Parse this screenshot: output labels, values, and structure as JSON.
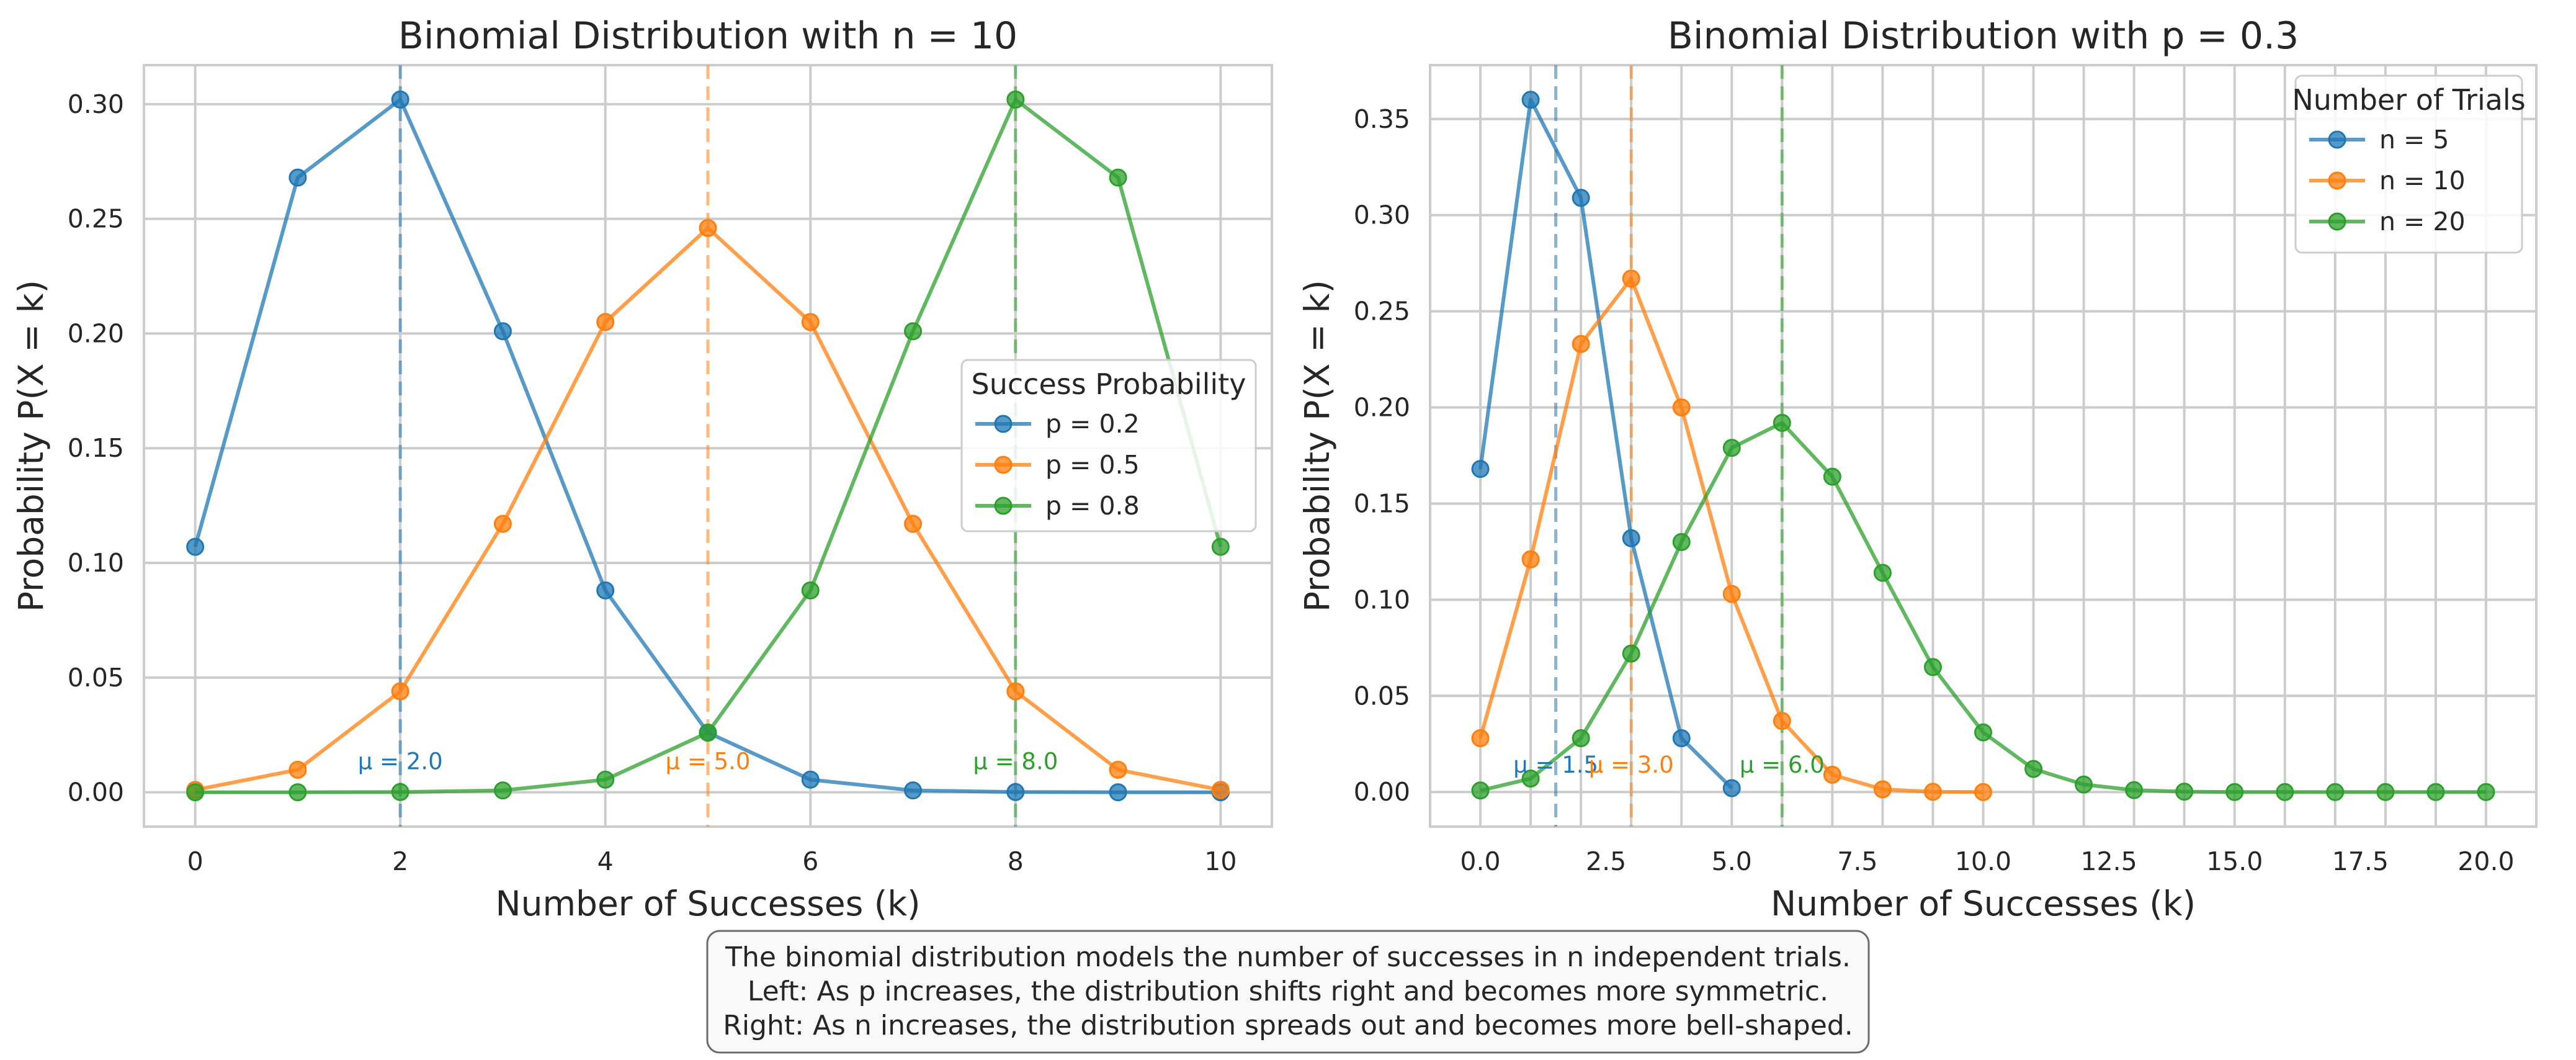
{
  "chart_data": [
    {
      "type": "line",
      "title": "Binomial Distribution with n = 10",
      "xlabel": "Number of Successes (k)",
      "ylabel": "Probability P(X = k)",
      "xlim": [
        -0.5,
        10.5
      ],
      "ylim": [
        -0.015,
        0.317
      ],
      "xticks": [
        0,
        2,
        4,
        6,
        8,
        10
      ],
      "xtick_labels": [
        "0",
        "2",
        "4",
        "6",
        "8",
        "10"
      ],
      "yticks": [
        0,
        0.05,
        0.1,
        0.15,
        0.2,
        0.25,
        0.3
      ],
      "ytick_labels": [
        "0.00",
        "0.05",
        "0.10",
        "0.15",
        "0.20",
        "0.25",
        "0.30"
      ],
      "grid": true,
      "legend": {
        "title": "Success Probability",
        "placement": "center-right"
      },
      "series": [
        {
          "name": "p = 0.2",
          "color": "#1f77b4",
          "x": [
            0,
            1,
            2,
            3,
            4,
            5,
            6,
            7,
            8,
            9,
            10
          ],
          "values": [
            0.107,
            0.268,
            0.302,
            0.201,
            0.088,
            0.026,
            0.0055,
            0.0008,
            0.0001,
            0.0,
            0.0
          ],
          "mean": 2.0,
          "mean_label": "μ = 2.0"
        },
        {
          "name": "p = 0.5",
          "color": "#ff7f0e",
          "x": [
            0,
            1,
            2,
            3,
            4,
            5,
            6,
            7,
            8,
            9,
            10
          ],
          "values": [
            0.001,
            0.0098,
            0.044,
            0.117,
            0.205,
            0.246,
            0.205,
            0.117,
            0.044,
            0.0098,
            0.001
          ],
          "mean": 5.0,
          "mean_label": "μ = 5.0"
        },
        {
          "name": "p = 0.8",
          "color": "#2ca02c",
          "x": [
            0,
            1,
            2,
            3,
            4,
            5,
            6,
            7,
            8,
            9,
            10
          ],
          "values": [
            0.0,
            0.0,
            0.0001,
            0.0008,
            0.0055,
            0.026,
            0.088,
            0.201,
            0.302,
            0.268,
            0.107
          ],
          "mean": 8.0,
          "mean_label": "μ = 8.0"
        }
      ]
    },
    {
      "type": "line",
      "title": "Binomial Distribution with p = 0.3",
      "xlabel": "Number of Successes (k)",
      "ylabel": "Probability P(X = k)",
      "xlim": [
        -1.0,
        21.0
      ],
      "ylim": [
        -0.018,
        0.378
      ],
      "xticks": [
        0,
        2.5,
        5,
        7.5,
        10,
        12.5,
        15,
        17.5,
        20
      ],
      "xtick_labels": [
        "0.0",
        "2.5",
        "5.0",
        "7.5",
        "10.0",
        "12.5",
        "15.0",
        "17.5",
        "20.0"
      ],
      "x_gridlines": [
        0,
        1,
        2,
        3,
        4,
        5,
        6,
        7,
        8,
        9,
        10,
        11,
        12,
        13,
        14,
        15,
        16,
        17,
        18,
        19,
        20
      ],
      "yticks": [
        0,
        0.05,
        0.1,
        0.15,
        0.2,
        0.25,
        0.3,
        0.35
      ],
      "ytick_labels": [
        "0.00",
        "0.05",
        "0.10",
        "0.15",
        "0.20",
        "0.25",
        "0.30",
        "0.35"
      ],
      "grid": true,
      "legend": {
        "title": "Number of Trials",
        "placement": "top-right"
      },
      "series": [
        {
          "name": "n = 5",
          "color": "#1f77b4",
          "x": [
            0,
            1,
            2,
            3,
            4,
            5
          ],
          "values": [
            0.168,
            0.36,
            0.309,
            0.132,
            0.028,
            0.002
          ],
          "mean": 1.5,
          "mean_label": "μ = 1.5"
        },
        {
          "name": "n = 10",
          "color": "#ff7f0e",
          "x": [
            0,
            1,
            2,
            3,
            4,
            5,
            6,
            7,
            8,
            9,
            10
          ],
          "values": [
            0.028,
            0.121,
            0.233,
            0.267,
            0.2,
            0.103,
            0.037,
            0.009,
            0.0014,
            0.0001,
            0.0
          ],
          "mean": 3.0,
          "mean_label": "μ = 3.0"
        },
        {
          "name": "n = 20",
          "color": "#2ca02c",
          "x": [
            0,
            1,
            2,
            3,
            4,
            5,
            6,
            7,
            8,
            9,
            10,
            11,
            12,
            13,
            14,
            15,
            16,
            17,
            18,
            19,
            20
          ],
          "values": [
            0.0008,
            0.007,
            0.028,
            0.072,
            0.13,
            0.179,
            0.192,
            0.164,
            0.114,
            0.065,
            0.031,
            0.012,
            0.0039,
            0.001,
            0.0002,
            0.0,
            0.0,
            0.0,
            0.0,
            0.0,
            0.0
          ],
          "mean": 6.0,
          "mean_label": "μ = 6.0"
        }
      ]
    }
  ],
  "caption": {
    "lines": [
      "The binomial distribution models the number of successes in n independent trials.",
      "Left: As p increases, the distribution shifts right and becomes more symmetric.",
      "Right: As n increases, the distribution spreads out and becomes more bell-shaped."
    ]
  }
}
